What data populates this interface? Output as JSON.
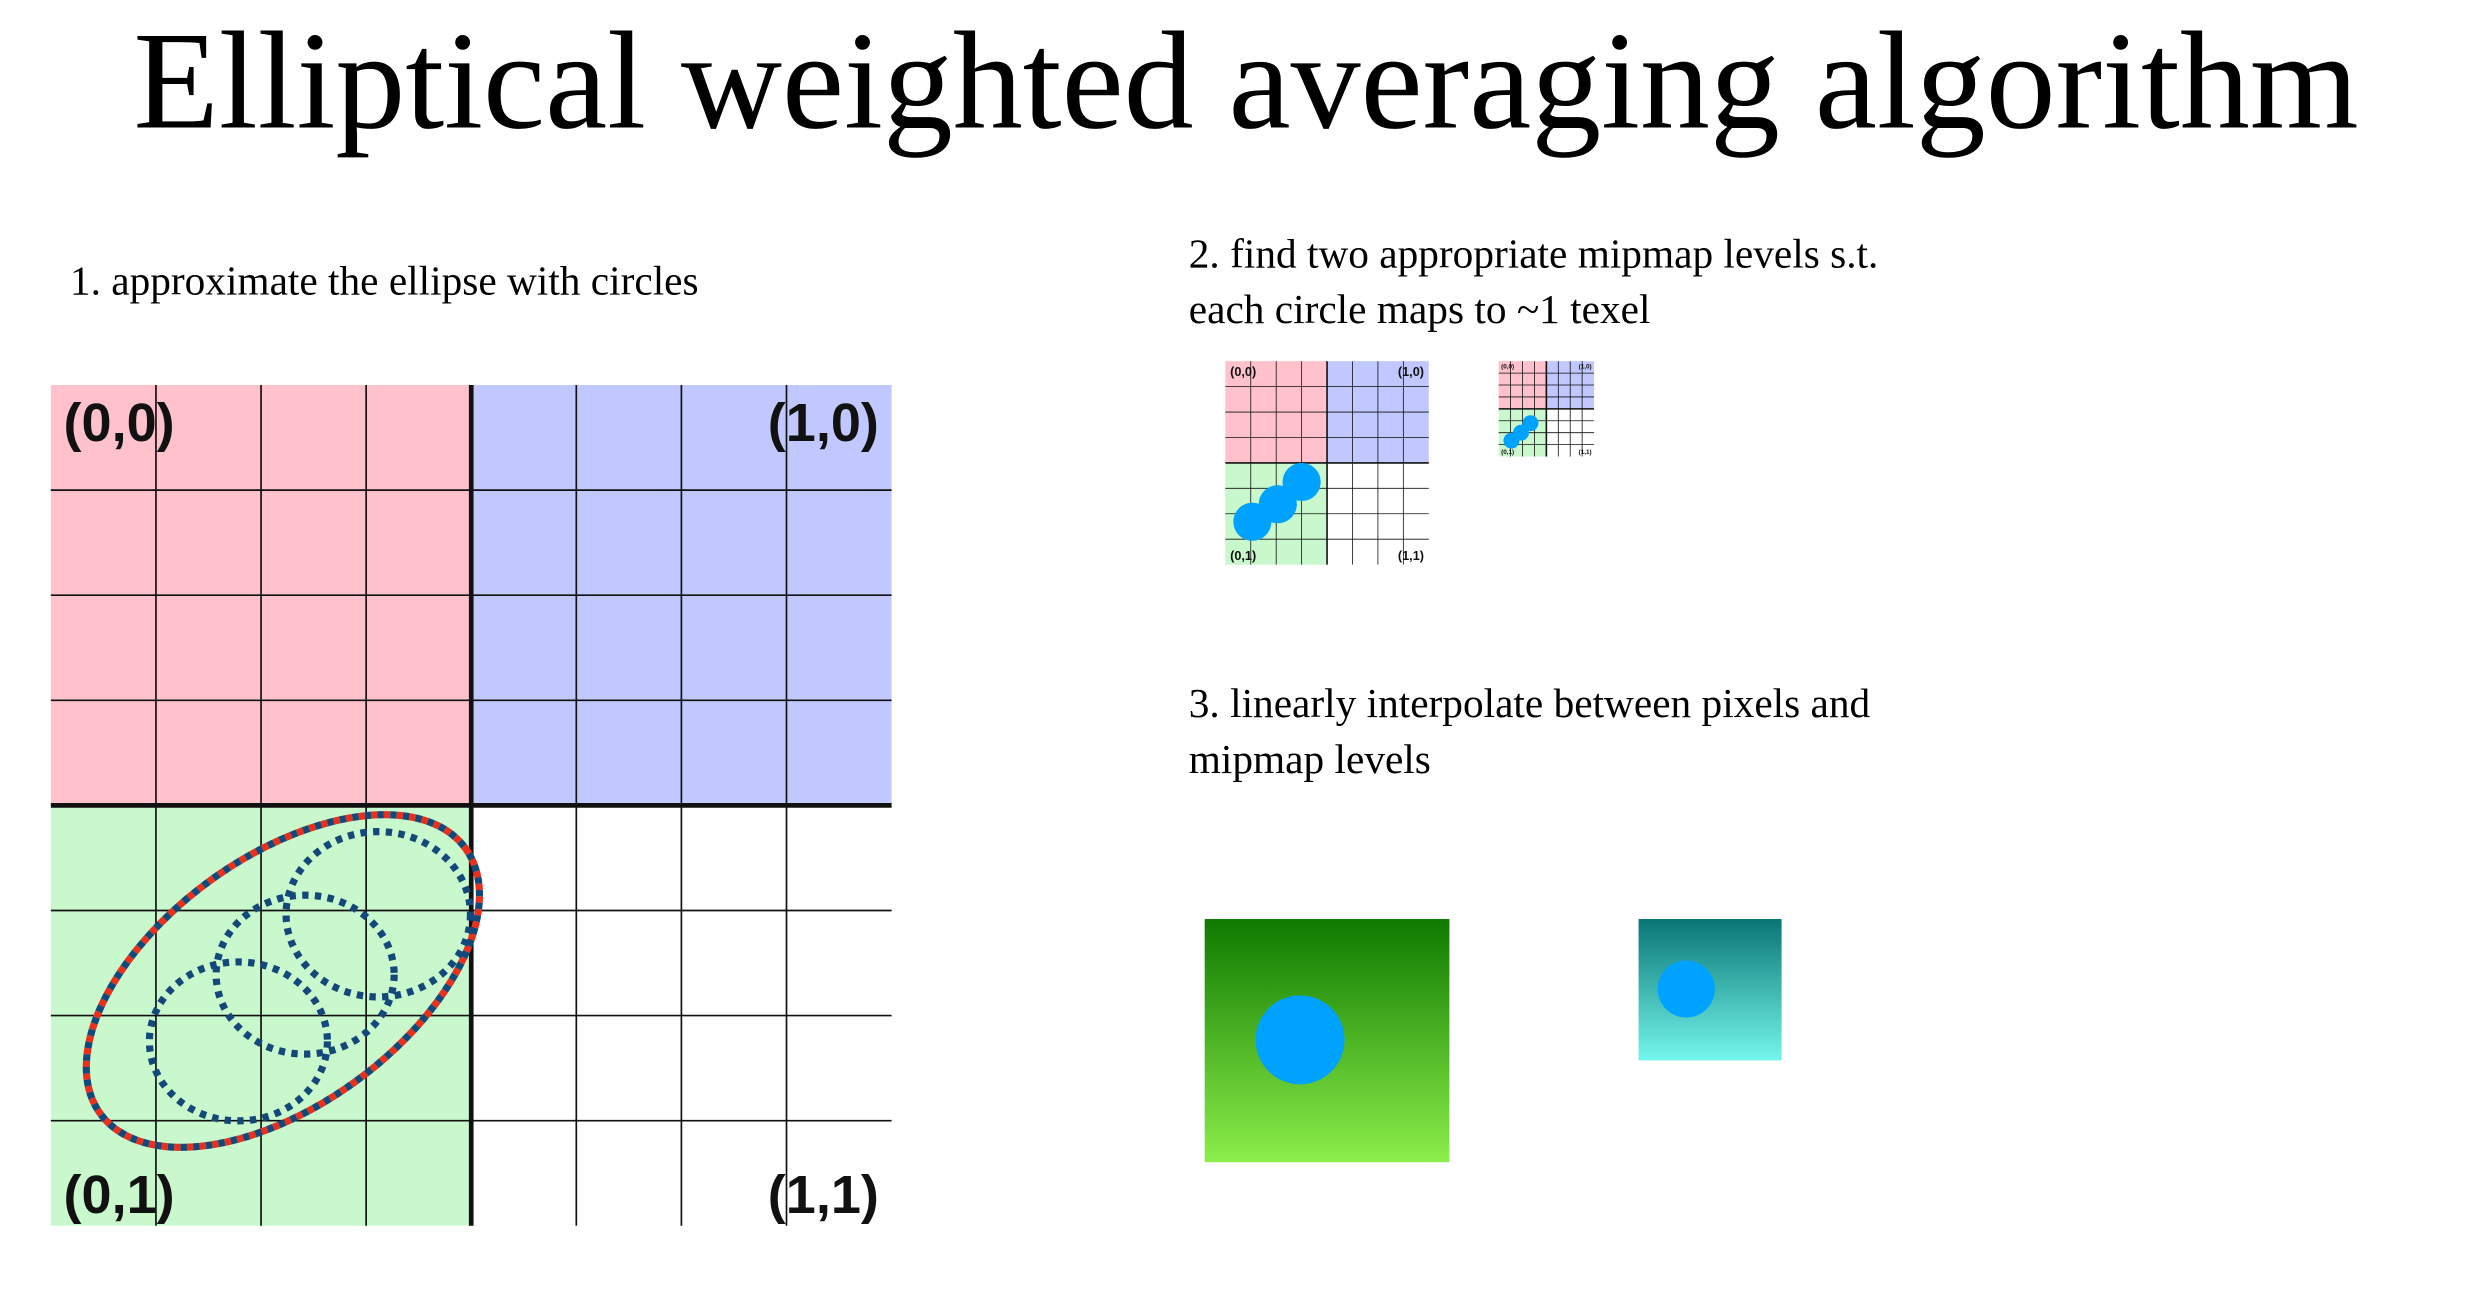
{
  "title": "Elliptical weighted averaging algorithm",
  "steps": [
    {
      "lines": [
        "1. approximate the ellipse with circles"
      ]
    },
    {
      "lines": [
        "2. find two appropriate mipmap levels s.t.",
        "each circle maps to ~1 texel"
      ]
    },
    {
      "lines": [
        "3. linearly interpolate between pixels and",
        "mipmap levels"
      ]
    }
  ],
  "grid_labels": [
    "(0,0)",
    "(1,0)",
    "(0,1)",
    "(1,1)"
  ]
}
